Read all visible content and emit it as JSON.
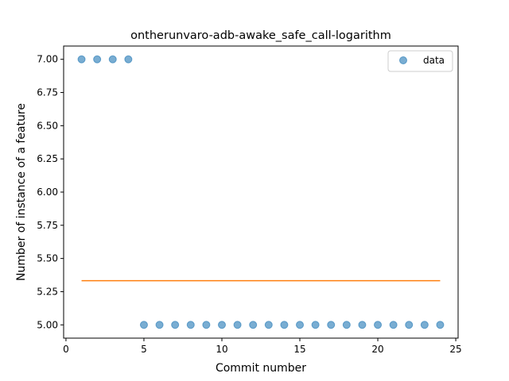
{
  "chart_data": {
    "type": "scatter",
    "title": "ontherunvaro-adb-awake_safe_call-logarithm",
    "xlabel": "Commit number",
    "ylabel": "Number of instance of a feature",
    "xlim": [
      -0.15,
      25.15
    ],
    "ylim": [
      4.9,
      7.1
    ],
    "xticks": [
      0,
      5,
      10,
      15,
      20,
      25
    ],
    "yticks": [
      5.0,
      5.25,
      5.5,
      5.75,
      6.0,
      6.25,
      6.5,
      6.75,
      7.0
    ],
    "ytick_labels": [
      "5.00",
      "5.25",
      "5.50",
      "5.75",
      "6.00",
      "6.25",
      "6.50",
      "6.75",
      "7.00"
    ],
    "legend": {
      "position": "top-right",
      "entries": [
        "data"
      ]
    },
    "series": [
      {
        "name": "data",
        "kind": "scatter",
        "color": "#1f77b4",
        "x": [
          1,
          2,
          3,
          4,
          5,
          6,
          7,
          8,
          9,
          10,
          11,
          12,
          13,
          14,
          15,
          16,
          17,
          18,
          19,
          20,
          21,
          22,
          23,
          24
        ],
        "y": [
          7,
          7,
          7,
          7,
          5,
          5,
          5,
          5,
          5,
          5,
          5,
          5,
          5,
          5,
          5,
          5,
          5,
          5,
          5,
          5,
          5,
          5,
          5,
          5
        ]
      },
      {
        "kind": "line",
        "color": "#ff7f0e",
        "x": [
          1,
          24
        ],
        "y": [
          5.333,
          5.333
        ]
      }
    ]
  }
}
